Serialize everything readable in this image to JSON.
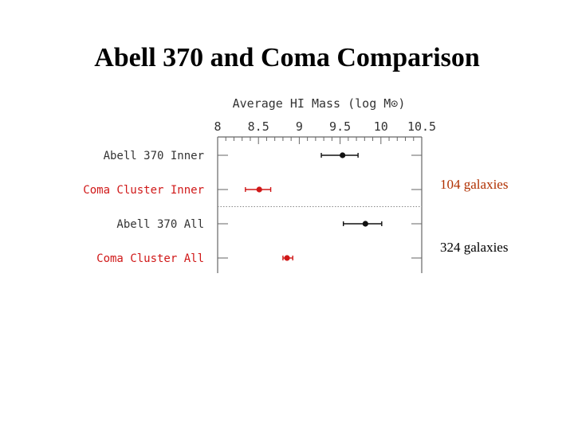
{
  "slide": {
    "title": "Abell 370 and Coma Comparison"
  },
  "chart_data": {
    "type": "scatter",
    "title": "Average HI Mass (log M⊙)",
    "xlim": [
      8,
      10.5
    ],
    "xticks": [
      "8",
      "8.5",
      "9",
      "9.5",
      "10",
      "10.5"
    ],
    "grid": false,
    "rows": [
      {
        "label": "Abell 370 Inner",
        "value": 9.53,
        "err_low": 9.27,
        "err_high": 9.72,
        "color": "#111111"
      },
      {
        "label": "Coma Cluster Inner",
        "value": 8.51,
        "err_low": 8.34,
        "err_high": 8.65,
        "color": "#d01818"
      },
      {
        "label": "Abell 370 All",
        "value": 9.81,
        "err_low": 9.54,
        "err_high": 10.01,
        "color": "#111111"
      },
      {
        "label": "Coma Cluster All",
        "value": 8.85,
        "err_low": 8.8,
        "err_high": 8.92,
        "color": "#d01818"
      }
    ]
  },
  "annotations": [
    {
      "text": "104 galaxies",
      "color": "#b03000"
    },
    {
      "text": "324 galaxies",
      "color": "#000000"
    }
  ]
}
